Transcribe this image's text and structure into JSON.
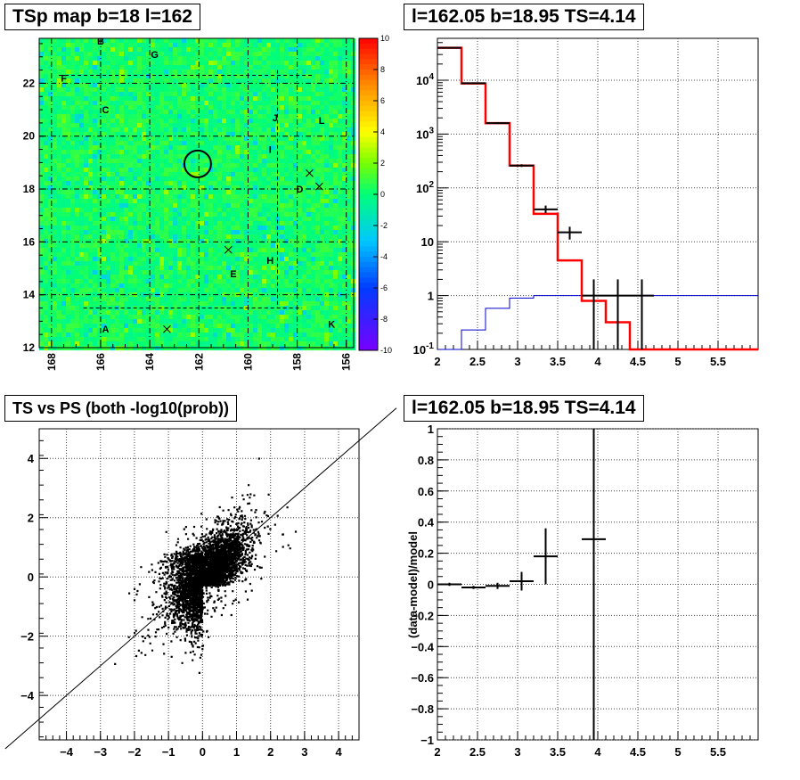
{
  "panels": {
    "tl_title": "TSp map b=18 l=162",
    "tr_title": "l=162.05 b=18.95 TS=4.14",
    "bl_title": "TS vs PS (both -log10(prob))",
    "br_title": "l=162.05 b=18.95 TS=4.14"
  },
  "chart_data": [
    {
      "type": "heatmap",
      "title": "TSp map b=18 l=162",
      "x_ticks": [
        "168",
        "166",
        "164",
        "162",
        "160",
        "158",
        "156"
      ],
      "y_ticks": [
        "12",
        "14",
        "16",
        "18",
        "20",
        "22"
      ],
      "x_range": [
        168.5,
        155.7
      ],
      "y_range": [
        12,
        23.7
      ],
      "z_range": [
        -10,
        10
      ],
      "colorbar_ticks": [
        "10",
        "8",
        "6",
        "4",
        "2",
        "0",
        "-2",
        "-4",
        "-6",
        "-8",
        "-10"
      ],
      "grid": true,
      "region_labels": [
        {
          "text": "B",
          "l": 166.0,
          "b": 23.6
        },
        {
          "text": "G",
          "l": 163.8,
          "b": 23.1
        },
        {
          "text": "F",
          "l": 167.5,
          "b": 22.2
        },
        {
          "text": "C",
          "l": 165.8,
          "b": 21.0
        },
        {
          "text": "J",
          "l": 158.9,
          "b": 20.7
        },
        {
          "text": "L",
          "l": 157.0,
          "b": 20.6
        },
        {
          "text": "I",
          "l": 159.1,
          "b": 19.5
        },
        {
          "text": "D",
          "l": 157.9,
          "b": 18.0
        },
        {
          "text": "H",
          "l": 159.1,
          "b": 15.3
        },
        {
          "text": "E",
          "l": 160.6,
          "b": 14.8
        },
        {
          "text": "A",
          "l": 165.8,
          "b": 12.7
        },
        {
          "text": "K",
          "l": 156.6,
          "b": 12.9
        }
      ],
      "cross_markers": [
        {
          "l": 157.5,
          "b": 18.6
        },
        {
          "l": 157.1,
          "b": 18.1
        },
        {
          "l": 160.8,
          "b": 15.7
        },
        {
          "l": 163.3,
          "b": 12.7
        }
      ],
      "circle": {
        "l": 162.05,
        "b": 18.95
      }
    },
    {
      "type": "line",
      "title": "l=162.05 b=18.95 TS=4.14",
      "x_ticks": [
        "2",
        "2.5",
        "3",
        "3.5",
        "4",
        "4.5",
        "5",
        "5.5"
      ],
      "xlim": [
        2,
        6
      ],
      "y_scale": "log",
      "ylim": [
        0.1,
        60000
      ],
      "y_tick_values": [
        0.1,
        1,
        10,
        100,
        1000,
        10000
      ],
      "y_ticks": [
        "10^-1",
        "1",
        "10",
        "10^2",
        "10^3",
        "10^4"
      ],
      "grid": true,
      "series": [
        {
          "color": "#ff0000",
          "step_edges": [
            2.0,
            2.3,
            2.6,
            2.9,
            3.2,
            3.5,
            3.8,
            4.1,
            4.4,
            6.0
          ],
          "values": [
            40000,
            8700,
            1600,
            260,
            33,
            4.5,
            0.8,
            0.32,
            0.1
          ]
        },
        {
          "color": "#0000cc",
          "step_edges": [
            2.0,
            2.3,
            2.6,
            2.9,
            3.2,
            3.5,
            3.8,
            4.1,
            4.4,
            4.7,
            5.0,
            6.0
          ],
          "values": [
            0.09,
            0.23,
            0.58,
            0.9,
            1.0,
            1.0,
            1.0,
            1.0,
            1.0,
            1.0,
            1.0
          ]
        },
        {
          "color": "#000000",
          "points": [
            {
              "x": 2.15,
              "y": 40000,
              "xerr": 0.15,
              "ylo": 39000,
              "yhi": 41000
            },
            {
              "x": 2.45,
              "y": 8800,
              "xerr": 0.15,
              "ylo": 8500,
              "yhi": 9100
            },
            {
              "x": 2.75,
              "y": 1600,
              "xerr": 0.15,
              "ylo": 1540,
              "yhi": 1660
            },
            {
              "x": 3.05,
              "y": 260,
              "xerr": 0.15,
              "ylo": 245,
              "yhi": 275
            },
            {
              "x": 3.35,
              "y": 40,
              "xerr": 0.15,
              "ylo": 34,
              "yhi": 47
            },
            {
              "x": 3.65,
              "y": 15,
              "xerr": 0.15,
              "ylo": 11,
              "yhi": 19
            },
            {
              "x": 3.95,
              "y": 1,
              "xerr": 0.15,
              "ylo": 0.1,
              "yhi": 2
            },
            {
              "x": 4.25,
              "y": 1,
              "xerr": 0.15,
              "ylo": 0.1,
              "yhi": 2
            },
            {
              "x": 4.55,
              "y": 1,
              "xerr": 0.15,
              "ylo": 0.1,
              "yhi": 2
            }
          ]
        }
      ]
    },
    {
      "type": "scatter",
      "title": "TS vs PS (both -log10(prob))",
      "x_ticks": [
        "-4",
        "-3",
        "-2",
        "-1",
        "0",
        "1",
        "2",
        "3",
        "4"
      ],
      "y_ticks": [
        "-4",
        "-2",
        "0",
        "2",
        "4"
      ],
      "xlim": [
        -4.8,
        4.6
      ],
      "ylim": [
        -5.5,
        5
      ],
      "grid": true,
      "diagonal_line": {
        "x1": -5.8,
        "y1": -5.8,
        "x2": 5.7,
        "y2": 5.7
      },
      "n_points": 4500,
      "seed": 12345
    },
    {
      "type": "scatter",
      "title": "l=162.05 b=18.95 TS=4.14",
      "ylabel": "(data-model)/model",
      "x_ticks": [
        "2",
        "2.5",
        "3",
        "3.5",
        "4",
        "4.5",
        "5",
        "5.5"
      ],
      "y_ticks": [
        "-1",
        "-0.8",
        "-0.6",
        "-0.4",
        "-0.2",
        "0",
        "0.2",
        "0.4",
        "0.6",
        "0.8",
        "1"
      ],
      "xlim": [
        2,
        6
      ],
      "ylim": [
        -1,
        1
      ],
      "grid": true,
      "points": [
        {
          "x": 2.15,
          "y": 0.0,
          "xerr": 0.15,
          "yerr": 0.01
        },
        {
          "x": 2.45,
          "y": -0.02,
          "xerr": 0.15,
          "yerr": 0.01
        },
        {
          "x": 2.75,
          "y": -0.01,
          "xerr": 0.15,
          "yerr": 0.02
        },
        {
          "x": 3.05,
          "y": 0.02,
          "xerr": 0.15,
          "yerr": 0.06
        },
        {
          "x": 3.35,
          "y": 0.18,
          "xerr": 0.15,
          "yerr": 0.18
        },
        {
          "x": 3.95,
          "y": 0.29,
          "xerr": 0.15,
          "yerr": 1.5
        }
      ]
    }
  ]
}
